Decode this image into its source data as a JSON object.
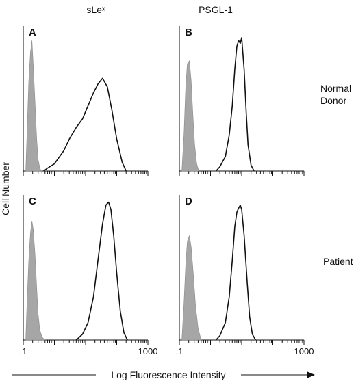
{
  "figure": {
    "column_titles": [
      "sLeˣ",
      "PSGL-1"
    ],
    "row_labels": [
      [
        "Normal",
        "Donor"
      ],
      [
        "Patient"
      ]
    ],
    "ylabel": "Cell Number",
    "xlabel": "Log Fluorescence Intensity"
  },
  "chart_data": [
    {
      "type": "area",
      "panel": "A",
      "title": "",
      "xscale": "log",
      "xlim": [
        0.1,
        1000
      ],
      "ylim": [
        0,
        1
      ],
      "series": [
        {
          "name": "",
          "style": "filled-gray",
          "x": [
            0.12,
            0.13,
            0.15,
            0.17,
            0.19,
            0.21,
            0.24,
            0.27,
            0.3,
            0.34,
            0.38
          ],
          "y": [
            0.0,
            0.22,
            0.62,
            0.82,
            0.9,
            0.72,
            0.46,
            0.22,
            0.08,
            0.02,
            0.0
          ]
        },
        {
          "name": "",
          "style": "black-outline",
          "x": [
            0.45,
            0.6,
            1,
            2,
            3,
            5,
            8,
            12,
            18,
            25,
            35,
            50,
            70,
            100,
            150,
            200
          ],
          "y": [
            0.0,
            0.02,
            0.05,
            0.14,
            0.22,
            0.3,
            0.36,
            0.45,
            0.54,
            0.6,
            0.64,
            0.58,
            0.42,
            0.22,
            0.06,
            0.0
          ]
        }
      ]
    },
    {
      "type": "area",
      "panel": "B",
      "title": "",
      "xscale": "log",
      "xlim": [
        0.1,
        1000
      ],
      "ylim": [
        0,
        1
      ],
      "series": [
        {
          "name": "",
          "style": "filled-gray",
          "x": [
            0.12,
            0.14,
            0.16,
            0.18,
            0.21,
            0.24,
            0.27,
            0.31,
            0.36,
            0.42
          ],
          "y": [
            0.0,
            0.25,
            0.58,
            0.74,
            0.76,
            0.62,
            0.4,
            0.18,
            0.05,
            0.0
          ]
        },
        {
          "name": "",
          "style": "black-outline",
          "x": [
            1.5,
            2,
            3,
            4,
            5,
            6,
            7,
            8,
            9,
            10,
            12,
            14,
            16,
            20,
            25
          ],
          "y": [
            0.0,
            0.03,
            0.1,
            0.25,
            0.45,
            0.7,
            0.86,
            0.9,
            0.88,
            0.92,
            0.7,
            0.4,
            0.18,
            0.04,
            0.0
          ]
        }
      ]
    },
    {
      "type": "area",
      "panel": "C",
      "title": "",
      "xscale": "log",
      "xlim": [
        0.1,
        1000
      ],
      "ylim": [
        0,
        1
      ],
      "series": [
        {
          "name": "",
          "style": "filled-gray",
          "x": [
            0.12,
            0.13,
            0.15,
            0.17,
            0.19,
            0.21,
            0.24,
            0.27,
            0.3,
            0.34,
            0.4,
            0.5
          ],
          "y": [
            0.0,
            0.22,
            0.55,
            0.74,
            0.82,
            0.76,
            0.58,
            0.36,
            0.18,
            0.07,
            0.02,
            0.0
          ]
        },
        {
          "name": "",
          "style": "black-outline",
          "x": [
            5,
            8,
            12,
            18,
            25,
            35,
            45,
            55,
            65,
            80,
            100,
            130,
            170,
            220
          ],
          "y": [
            0.0,
            0.04,
            0.12,
            0.3,
            0.55,
            0.8,
            0.93,
            0.95,
            0.9,
            0.72,
            0.46,
            0.2,
            0.05,
            0.0
          ]
        }
      ]
    },
    {
      "type": "area",
      "panel": "D",
      "title": "",
      "xscale": "log",
      "xlim": [
        0.1,
        1000
      ],
      "ylim": [
        0,
        1
      ],
      "series": [
        {
          "name": "",
          "style": "filled-gray",
          "x": [
            0.12,
            0.14,
            0.16,
            0.18,
            0.21,
            0.24,
            0.28,
            0.33,
            0.4,
            0.5
          ],
          "y": [
            0.0,
            0.25,
            0.52,
            0.68,
            0.72,
            0.64,
            0.46,
            0.24,
            0.08,
            0.0
          ]
        },
        {
          "name": "",
          "style": "black-outline",
          "x": [
            1.5,
            2,
            3,
            4,
            5,
            6,
            7,
            8,
            9,
            10,
            12,
            15,
            18,
            22,
            28
          ],
          "y": [
            0.0,
            0.03,
            0.12,
            0.3,
            0.55,
            0.78,
            0.88,
            0.91,
            0.93,
            0.9,
            0.72,
            0.4,
            0.16,
            0.04,
            0.0
          ]
        }
      ]
    }
  ],
  "tick_labels": {
    "left": ".1",
    "right": "1000"
  },
  "colors": {
    "gray_fill": "#a6a6a6",
    "outline": "#111111"
  }
}
